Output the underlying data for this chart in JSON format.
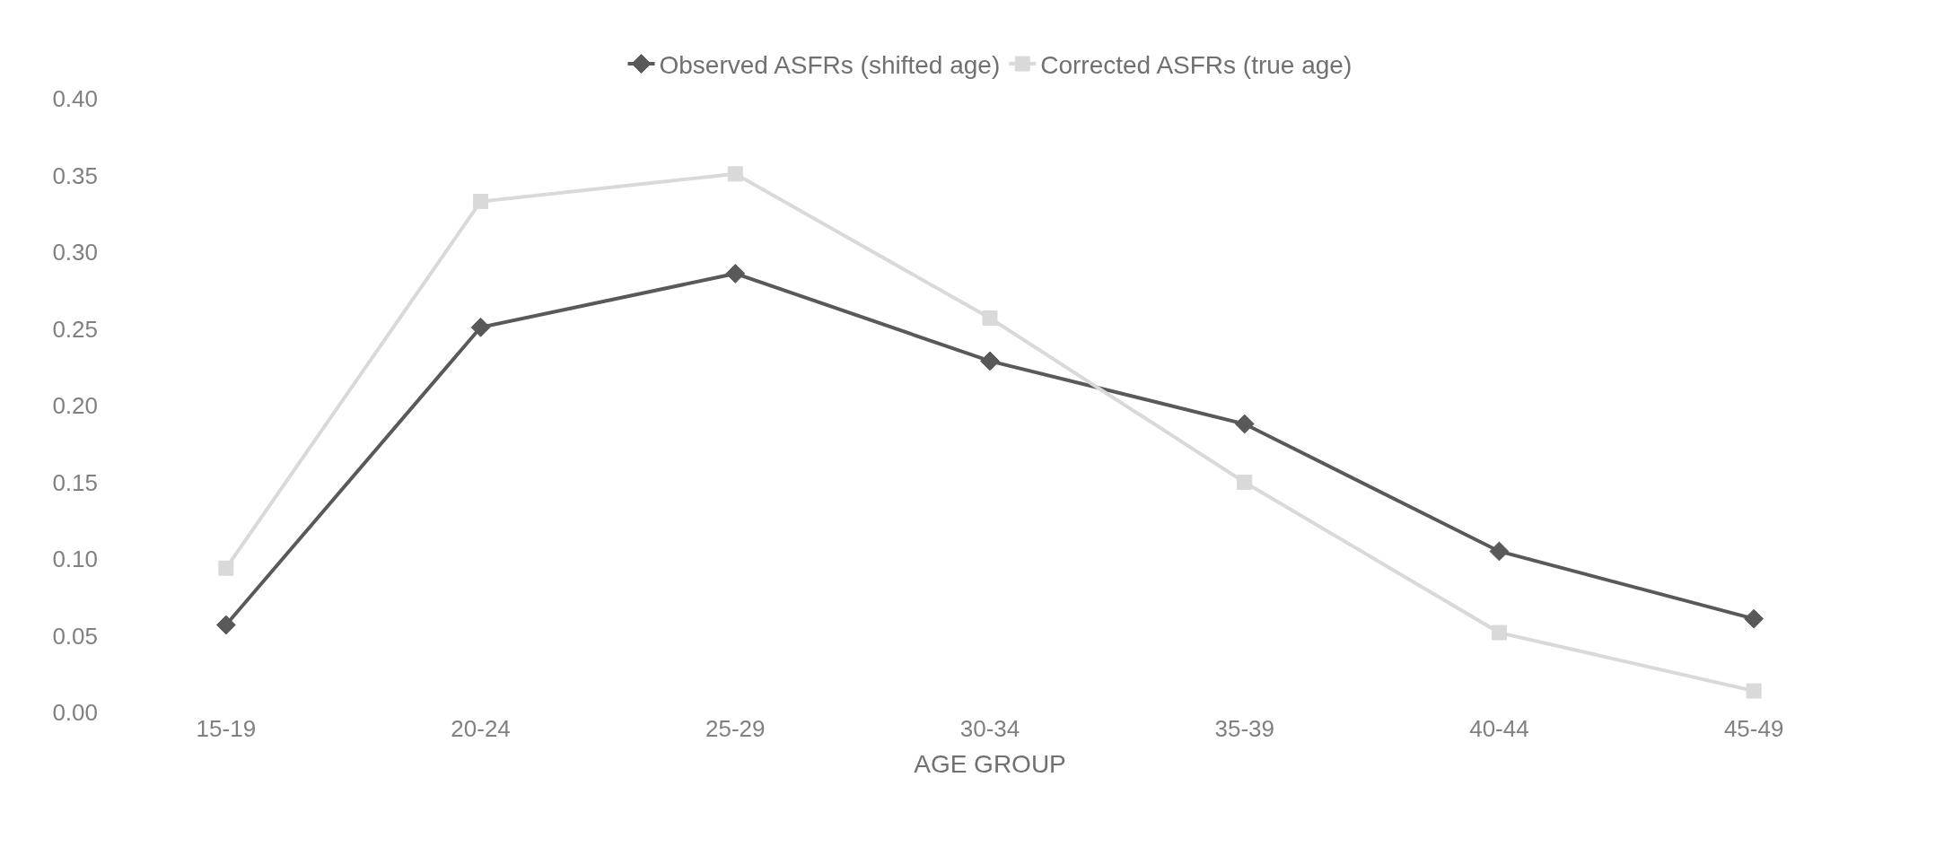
{
  "chart_data": {
    "type": "line",
    "xlabel": "AGE GROUP",
    "categories": [
      "15-19",
      "20-24",
      "25-29",
      "30-34",
      "35-39",
      "40-44",
      "45-49"
    ],
    "series": [
      {
        "name": "Observed ASFRs (shifted age)",
        "color": "#595959",
        "marker": "diamond",
        "values": [
          0.057,
          0.251,
          0.286,
          0.229,
          0.188,
          0.105,
          0.061
        ]
      },
      {
        "name": "Corrected ASFRs (true age)",
        "color": "#d9d9d9",
        "marker": "square",
        "values": [
          0.094,
          0.333,
          0.351,
          0.257,
          0.15,
          0.052,
          0.014
        ]
      }
    ],
    "ylim": [
      0,
      0.4
    ],
    "yticks": [
      {
        "value": 0,
        "label": "0.00"
      },
      {
        "value": 0.05,
        "label": "0.05"
      },
      {
        "value": 0.1,
        "label": "0.10"
      },
      {
        "value": 0.15,
        "label": "0.15"
      },
      {
        "value": 0.2,
        "label": "0.20"
      },
      {
        "value": 0.25,
        "label": "0.25"
      },
      {
        "value": 0.3,
        "label": "0.30"
      },
      {
        "value": 0.35,
        "label": "0.35"
      },
      {
        "value": 0.4,
        "label": "0.40"
      }
    ],
    "legend": "top",
    "line_style": "solid"
  }
}
